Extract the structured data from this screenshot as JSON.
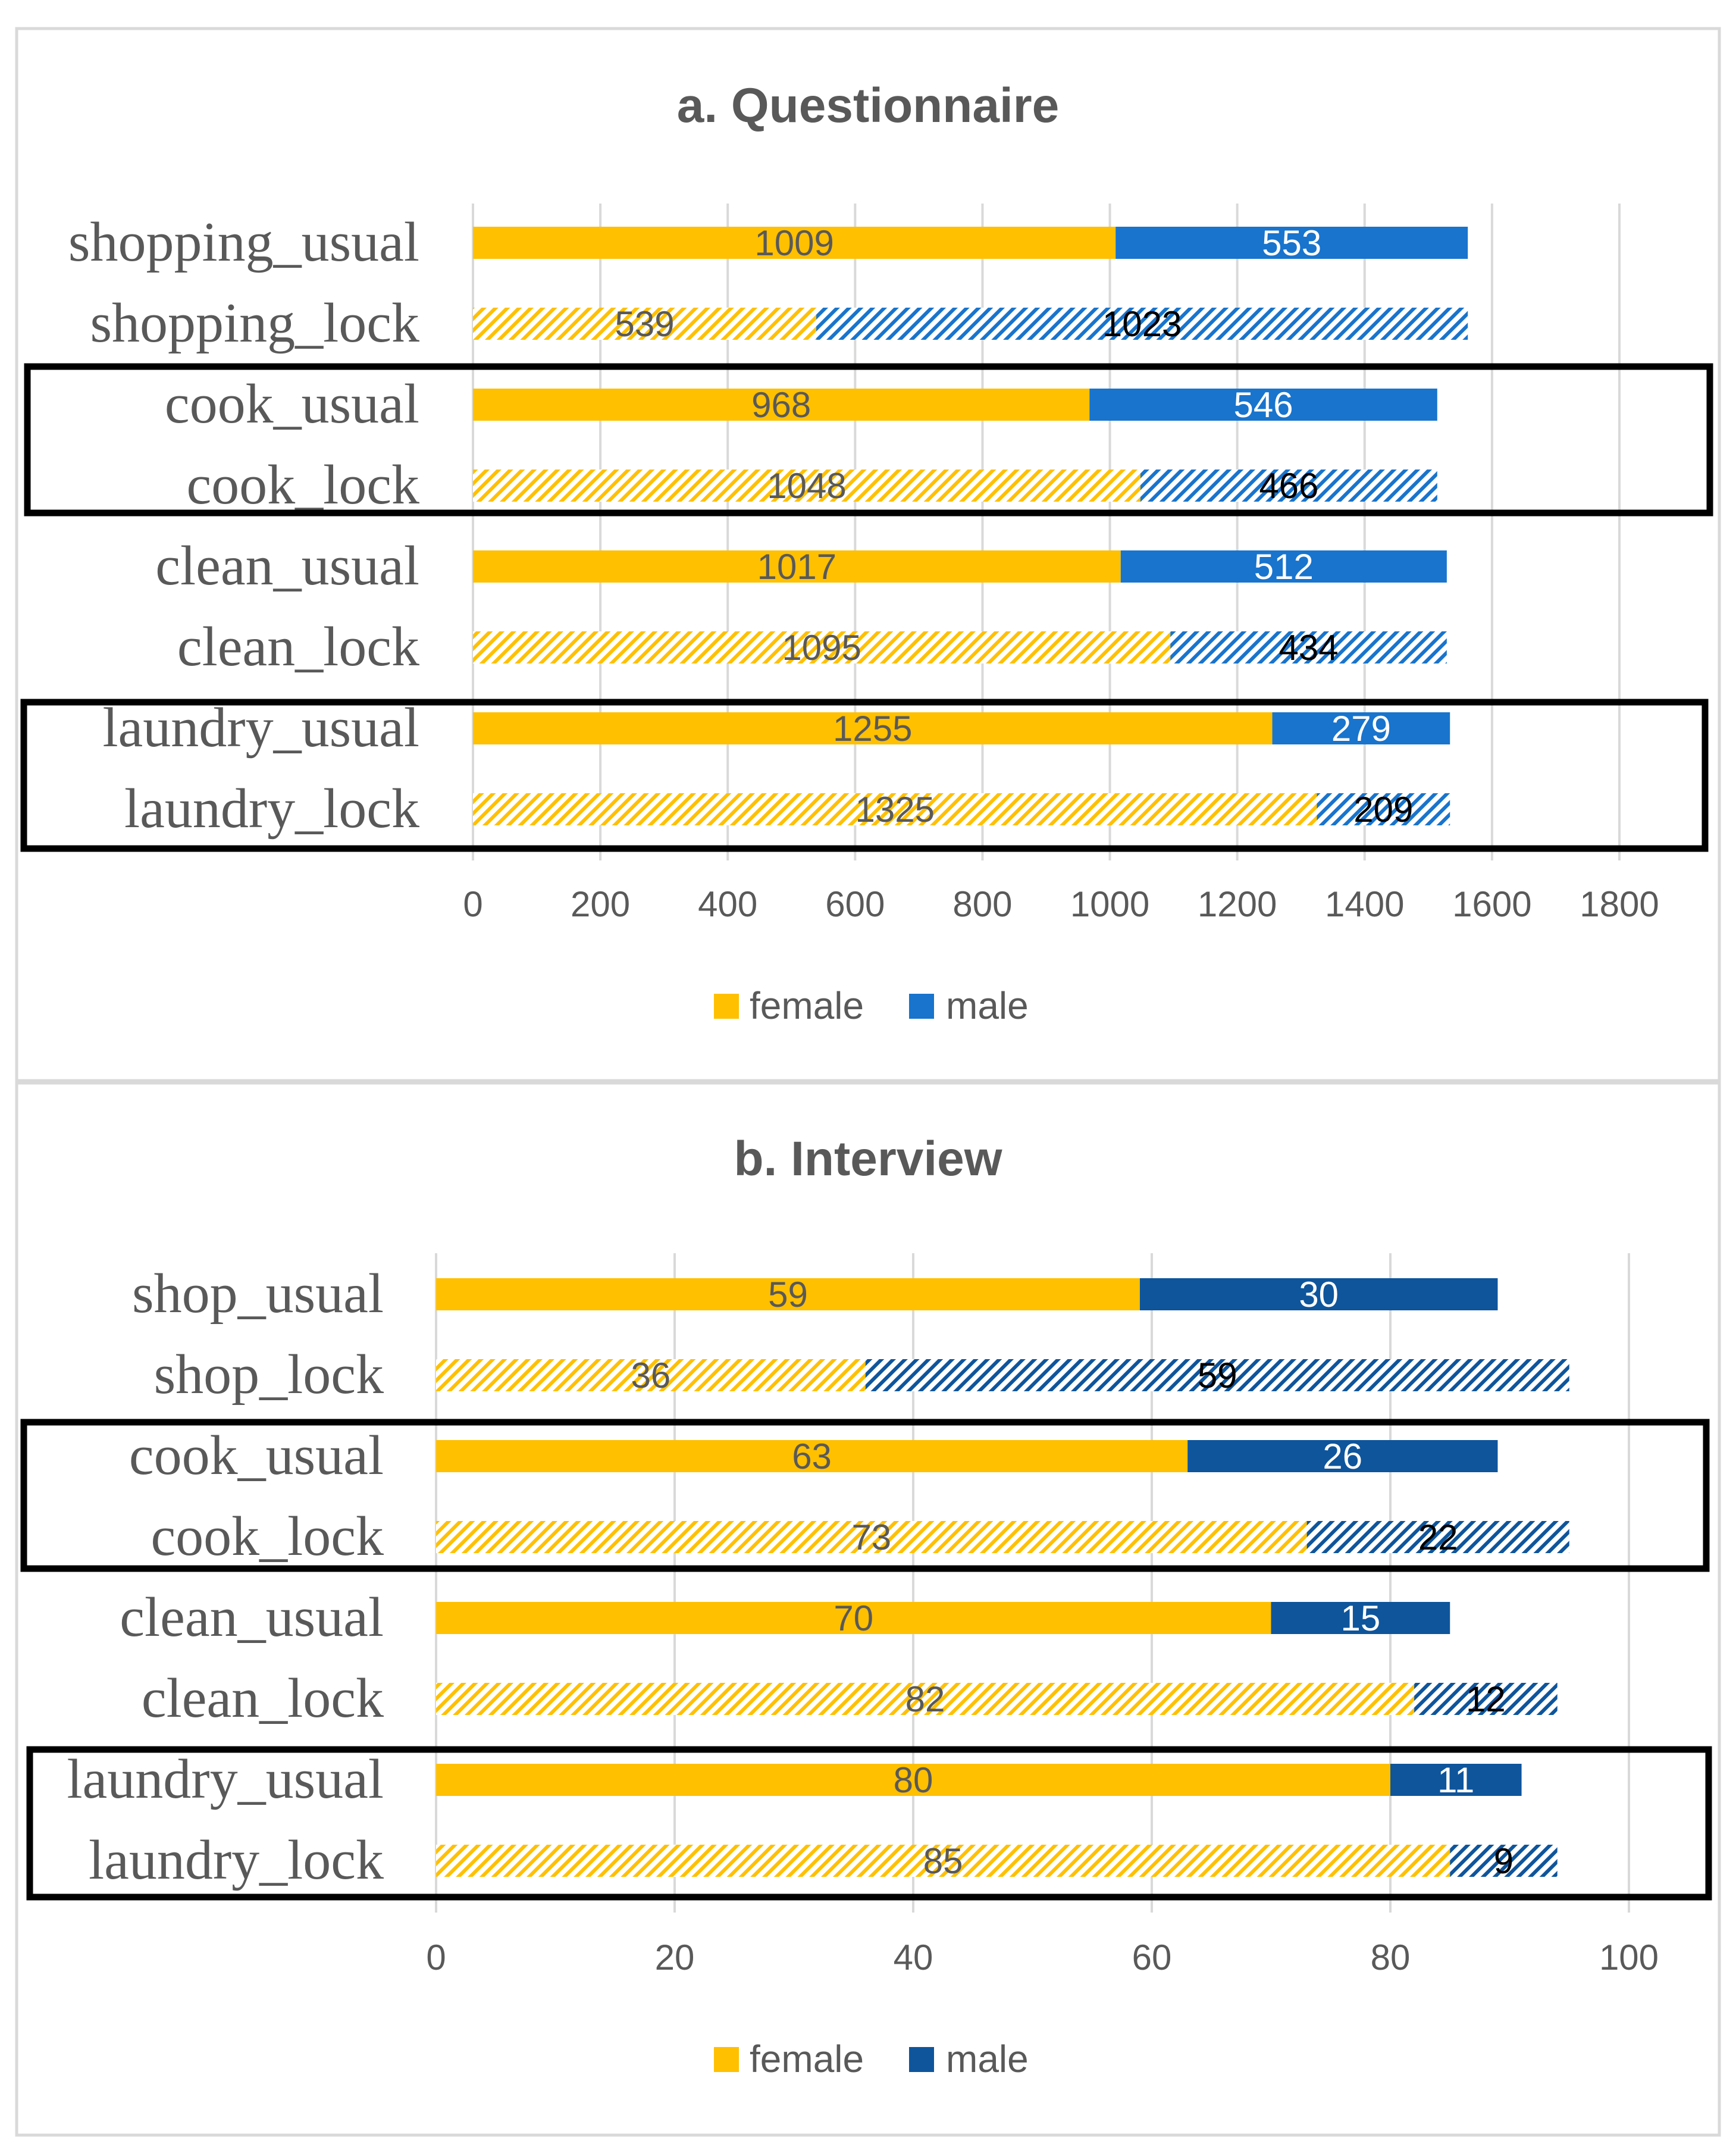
{
  "colors": {
    "female": "#FFC000",
    "male_a": "#1874CD",
    "male_b": "#0E559C",
    "grid": "#D9D9D9",
    "text": "#595959",
    "frame": "#000000"
  },
  "chart_data": [
    {
      "type": "bar",
      "orientation": "horizontal",
      "stacked": true,
      "title": "a. Questionnaire",
      "categories": [
        "shopping_usual",
        "shopping_lock",
        "cook_usual",
        "cook_lock",
        "clean_usual",
        "clean_lock",
        "laundry_usual",
        "laundry_lock"
      ],
      "hatched": [
        false,
        true,
        false,
        true,
        false,
        true,
        false,
        true
      ],
      "series": [
        {
          "name": "female",
          "values": [
            1009,
            539,
            968,
            1048,
            1017,
            1095,
            1255,
            1325
          ]
        },
        {
          "name": "male",
          "values": [
            553,
            1023,
            546,
            466,
            512,
            434,
            279,
            209
          ]
        }
      ],
      "xlim": [
        0,
        1800
      ],
      "ticks": [
        0,
        200,
        400,
        600,
        800,
        1000,
        1200,
        1400,
        1600,
        1800
      ],
      "grid": true,
      "legend": "bottom",
      "highlight_groups": [
        [
          2,
          3
        ],
        [
          6,
          7
        ]
      ]
    },
    {
      "type": "bar",
      "orientation": "horizontal",
      "stacked": true,
      "title": "b. Interview",
      "categories": [
        "shop_usual",
        "shop_lock",
        "cook_usual",
        "cook_lock",
        "clean_usual",
        "clean_lock",
        "laundry_usual",
        "laundry_lock"
      ],
      "hatched": [
        false,
        true,
        false,
        true,
        false,
        true,
        false,
        true
      ],
      "series": [
        {
          "name": "female",
          "values": [
            59,
            36,
            63,
            73,
            70,
            82,
            80,
            85
          ]
        },
        {
          "name": "male",
          "values": [
            30,
            59,
            26,
            22,
            15,
            12,
            11,
            9
          ]
        }
      ],
      "xlim": [
        0,
        100
      ],
      "ticks": [
        0,
        20,
        40,
        60,
        80,
        100
      ],
      "grid": true,
      "legend": "bottom",
      "highlight_groups": [
        [
          2,
          3
        ],
        [
          6,
          7
        ]
      ]
    }
  ]
}
